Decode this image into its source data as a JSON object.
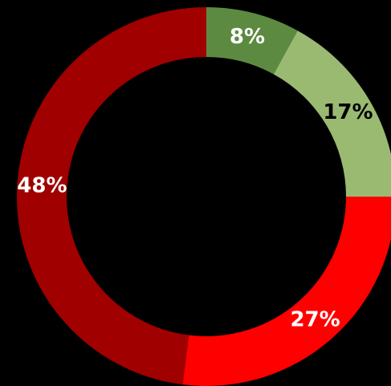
{
  "chart_data": {
    "type": "pie",
    "donut": true,
    "slices": [
      {
        "value": 8,
        "label": "8%",
        "color": "#5c8a41",
        "label_color": "#ffffff"
      },
      {
        "value": 17,
        "label": "17%",
        "color": "#9aba72",
        "label_color": "#000000"
      },
      {
        "value": 27,
        "label": "27%",
        "color": "#ff0000",
        "label_color": "#ffffff"
      },
      {
        "value": 48,
        "label": "48%",
        "color": "#a00000",
        "label_color": "#ffffff"
      }
    ],
    "start_angle_deg": 0,
    "direction": "clockwise",
    "background": "#000000"
  }
}
